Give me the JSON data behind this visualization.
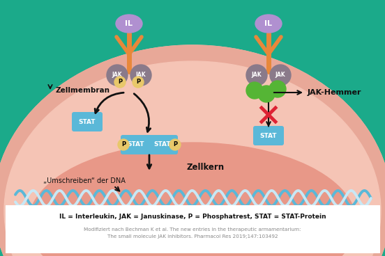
{
  "bg_teal": "#1baa8a",
  "bg_cell": "#f5c4b5",
  "bg_membrane": "#e8a898",
  "bg_nucleus": "#e89888",
  "bg_white": "#ffffff",
  "color_jak": "#8a7a8a",
  "color_p": "#e8c86a",
  "color_stat": "#5ab8d8",
  "color_il": "#b090d0",
  "color_receptor": "#e8883a",
  "color_green": "#55b535",
  "color_arrow": "#111111",
  "color_red": "#dd2233",
  "color_dna_blue": "#5ab8d8",
  "color_dna_light": "#c8e8f5",
  "text_dark": "#111111",
  "text_gray": "#888888",
  "legend_text": "IL = Interleukin, JAK = Januskinase, P = Phosphatrest, STAT = STAT-Protein",
  "cite_line1": "Modifiziert nach Bechman K et al. The new entries in the therapeutic armamentarium:",
  "cite_line2": "The small molecule JAK inhibitors. Pharmacol Res 2019;147:103492",
  "label_zellmembran": "Zellmembran",
  "label_zellkern": "Zellkern",
  "label_umschreiben": "„Umschreiben“ der DNA",
  "label_jak_hemmer": "JAK-Hemmer",
  "label_il": "IL",
  "label_jak": "JAK",
  "label_p": "P",
  "label_stat": "STAT",
  "figw": 5.52,
  "figh": 3.68,
  "dpi": 100
}
